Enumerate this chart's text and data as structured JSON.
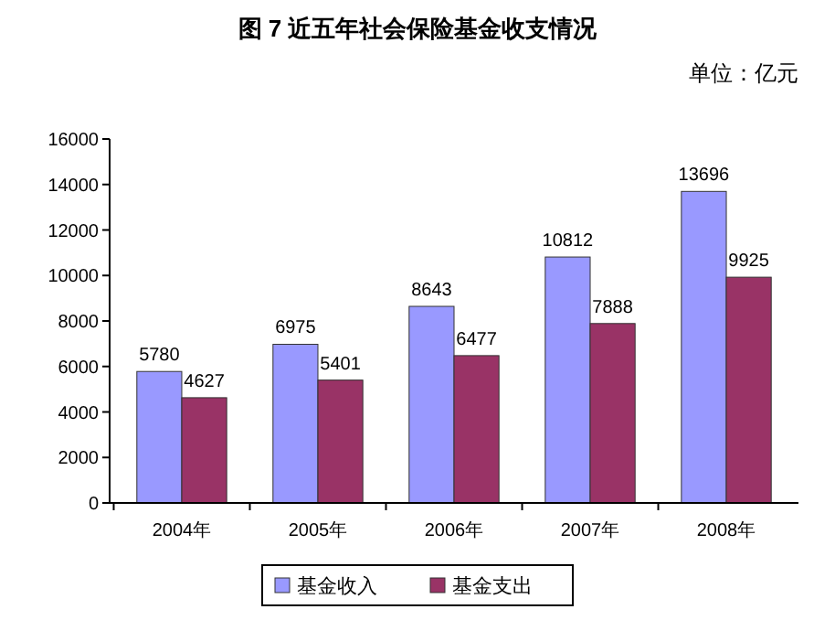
{
  "chart_data": {
    "type": "bar",
    "title": "图 7  近五年社会保险基金收支情况",
    "annotations": [
      "单位：亿元"
    ],
    "categories": [
      "2004年",
      "2005年",
      "2006年",
      "2007年",
      "2008年"
    ],
    "series": [
      {
        "name": "基金收入",
        "color": "#9999ff",
        "values": [
          5780,
          6975,
          8643,
          10812,
          13696
        ]
      },
      {
        "name": "基金支出",
        "color": "#993366",
        "values": [
          4627,
          5401,
          6477,
          7888,
          9925
        ]
      }
    ],
    "ylim": [
      0,
      16000
    ],
    "yticks": [
      0,
      2000,
      4000,
      6000,
      8000,
      10000,
      12000,
      14000,
      16000
    ],
    "grid": false,
    "legend": "bottom",
    "data_labels": true
  }
}
